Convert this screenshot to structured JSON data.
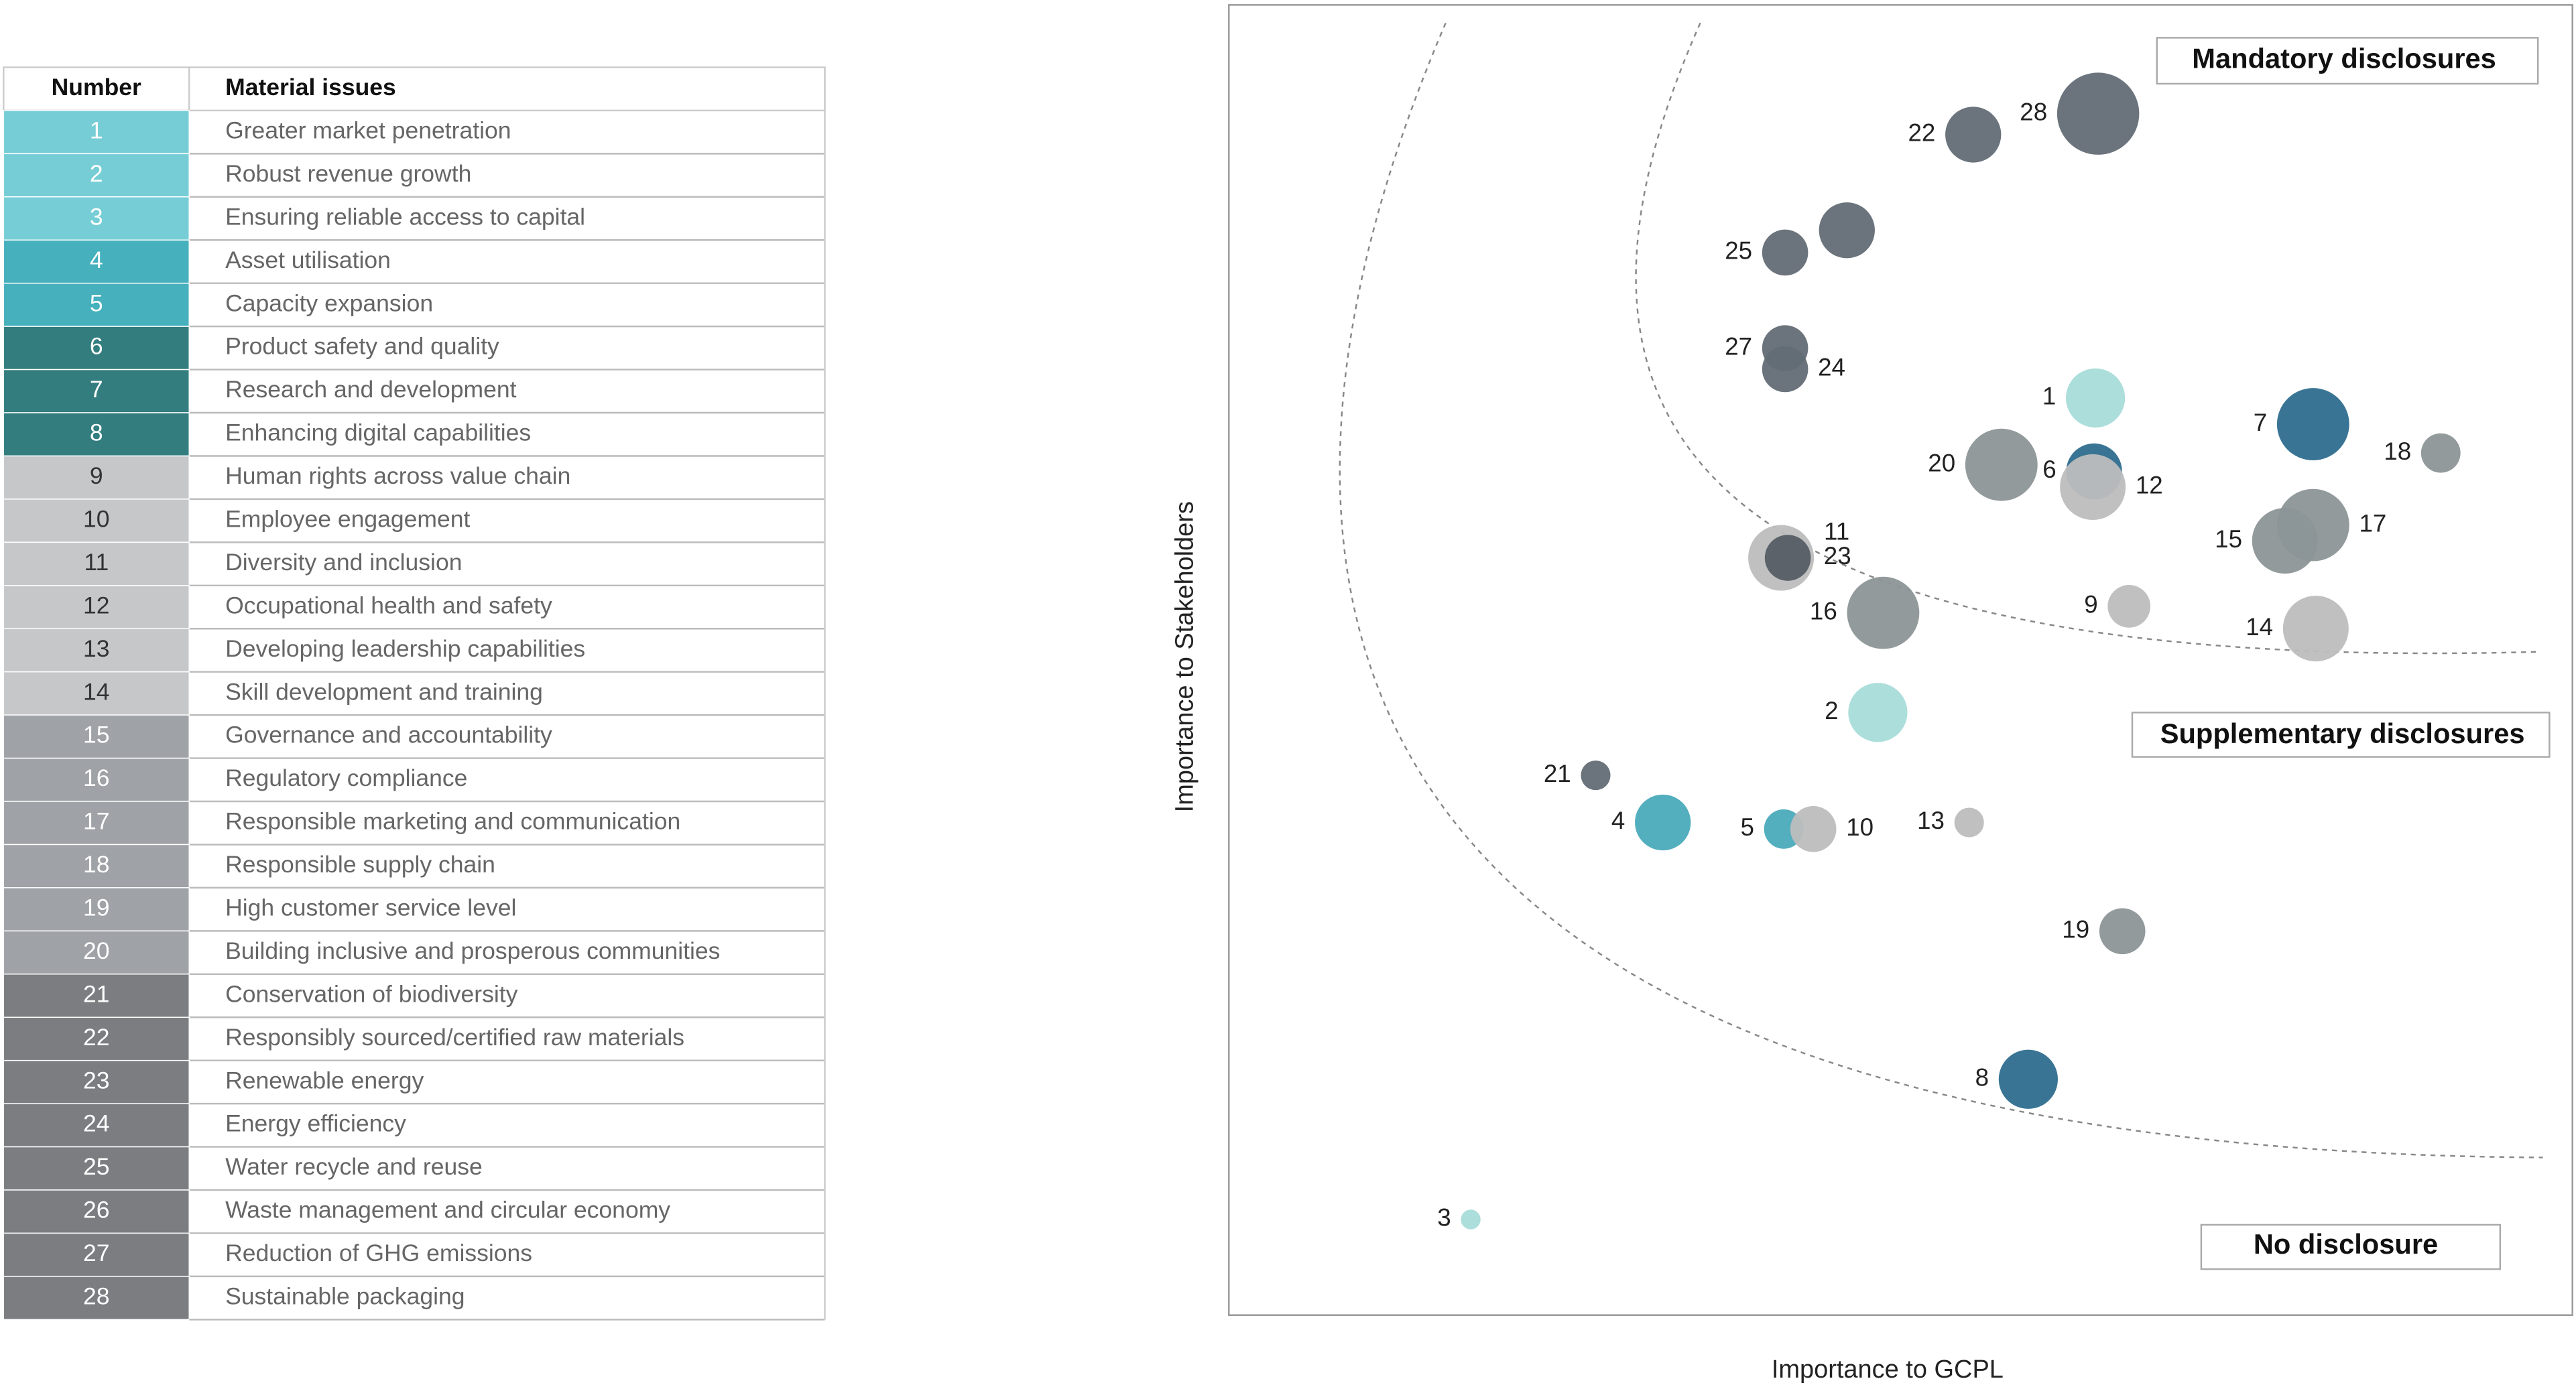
{
  "table": {
    "headers": [
      "Number",
      "Material issues"
    ],
    "rows": [
      [
        "1",
        "Greater market penetration"
      ],
      [
        "2",
        "Robust revenue growth"
      ],
      [
        "3",
        "Ensuring reliable access to capital"
      ],
      [
        "4",
        "Asset utilisation"
      ],
      [
        "5",
        "Capacity expansion"
      ],
      [
        "6",
        "Product safety and quality"
      ],
      [
        "7",
        "Research and development"
      ],
      [
        "8",
        "Enhancing digital capabilities"
      ],
      [
        "9",
        "Human rights across value chain"
      ],
      [
        "10",
        "Employee engagement"
      ],
      [
        "11",
        "Diversity and inclusion"
      ],
      [
        "12",
        "Occupational health and safety"
      ],
      [
        "13",
        "Developing leadership capabilities"
      ],
      [
        "14",
        "Skill development and training"
      ],
      [
        "15",
        "Governance and accountability"
      ],
      [
        "16",
        "Regulatory compliance"
      ],
      [
        "17",
        "Responsible marketing and communication"
      ],
      [
        "18",
        "Responsible supply chain"
      ],
      [
        "19",
        "High customer service level"
      ],
      [
        "20",
        "Building inclusive and prosperous communities"
      ],
      [
        "21",
        "Conservation of biodiversity"
      ],
      [
        "22",
        "Responsibly sourced/certified raw materials"
      ],
      [
        "23",
        "Renewable energy"
      ],
      [
        "24",
        "Energy efficiency"
      ],
      [
        "25",
        "Water recycle and reuse"
      ],
      [
        "26",
        "Waste management and circular economy"
      ],
      [
        "27",
        "Reduction of GHG emissions"
      ],
      [
        "28",
        "Sustainable packaging"
      ]
    ],
    "colors": [
      "#76cdd6",
      "#76cdd6",
      "#76cdd6",
      "#46b0bd",
      "#46b0bd",
      "#337d7f",
      "#337d7f",
      "#337d7f",
      "#c6c7c9",
      "#c6c7c9",
      "#c6c7c9",
      "#c6c7c9",
      "#c6c7c9",
      "#c6c7c9",
      "#9fa2a6",
      "#9fa2a6",
      "#9fa2a6",
      "#9fa2a6",
      "#9fa2a6",
      "#9fa2a6",
      "#7b7d81",
      "#7b7d81",
      "#7b7d81",
      "#7b7d81",
      "#7b7d81",
      "#7b7d81",
      "#7b7d81",
      "#7b7d81"
    ]
  },
  "chart_data": {
    "type": "bubble",
    "xlabel": "Importance to GCPL",
    "ylabel": "Importance to Stakeholders",
    "annotations": [
      "Mandatory disclosures",
      "Supplementary disclosures",
      "No disclosure"
    ],
    "xlim": [
      0,
      100
    ],
    "ylim": [
      0,
      100
    ],
    "point_labels": [
      "1",
      "2",
      "3",
      "4",
      "5",
      "6",
      "7",
      "8",
      "9",
      "10",
      "23",
      "12",
      "13",
      "14",
      "15",
      "16",
      "17",
      "18",
      "19",
      "20",
      "21",
      "22",
      "11",
      "24",
      "25",
      null,
      "27",
      "28"
    ],
    "x": [
      64.5,
      48.3,
      18.0,
      32.3,
      41.3,
      64.4,
      80.7,
      59.5,
      67.0,
      43.5,
      41.1,
      64.3,
      55.1,
      80.9,
      78.6,
      48.7,
      80.7,
      90.2,
      66.5,
      57.5,
      27.3,
      55.4,
      41.6,
      41.4,
      41.4,
      46.0,
      41.4,
      64.7
    ],
    "values": [
      70.0,
      46.0,
      7.3,
      37.6,
      37.1,
      64.4,
      68.0,
      18.0,
      54.1,
      37.1,
      57.8,
      63.2,
      37.6,
      52.4,
      59.1,
      53.6,
      60.3,
      65.8,
      29.3,
      64.9,
      41.2,
      90.1,
      57.8,
      72.2,
      81.1,
      82.8,
      73.8,
      91.7
    ],
    "sizes": [
      18,
      18,
      6,
      17,
      12,
      17,
      22,
      18,
      13,
      14,
      20,
      20,
      9,
      20,
      20,
      22,
      22,
      12,
      14,
      22,
      9,
      17,
      14,
      14,
      14,
      17,
      14,
      25
    ],
    "colors": [
      "#a8dcd9",
      "#a8dcd9",
      "#a8dcd9",
      "#4aaabb",
      "#4aaabb",
      "#2e6d8e",
      "#2e6d8e",
      "#2e6d8e",
      "#bdbdbd",
      "#bdbdbd",
      "#bdbdbd",
      "#bdbdbd",
      "#bdbdbd",
      "#bdbdbd",
      "#8c9597",
      "#8c9597",
      "#8c9597",
      "#8c9597",
      "#8c9597",
      "#8c9597",
      "#636d75",
      "#636d75",
      "#555d64",
      "#636d75",
      "#636d75",
      "#636d75",
      "#636d75",
      "#636d75"
    ]
  }
}
